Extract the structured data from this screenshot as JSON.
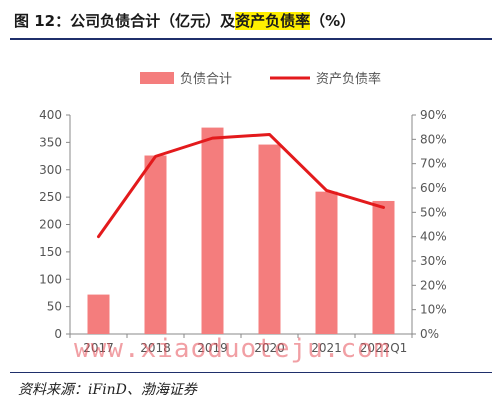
{
  "header": {
    "title_main": "图 12：公司负债合计（亿元）及",
    "title_highlight": "资产负债率",
    "title_tail": "（%）"
  },
  "chart_data": {
    "type": "bar",
    "categories": [
      "2017",
      "2018",
      "2019",
      "2020",
      "2021",
      "2022Q1"
    ],
    "series": [
      {
        "name": "负债合计",
        "type": "bar",
        "axis": "left",
        "values": [
          72,
          326,
          377,
          346,
          260,
          243
        ]
      },
      {
        "name": "资产负债率",
        "type": "line",
        "axis": "right",
        "values": [
          40,
          73,
          80.5,
          82,
          59,
          52
        ]
      }
    ],
    "ylim_left": [
      0,
      400
    ],
    "yticks_left": [
      "0",
      "50",
      "100",
      "150",
      "200",
      "250",
      "300",
      "350",
      "400"
    ],
    "ylim_right": [
      0,
      90
    ],
    "yticks_right": [
      "0%",
      "10%",
      "20%",
      "30%",
      "40%",
      "50%",
      "60%",
      "70%",
      "80%",
      "90%"
    ],
    "legend_position": "top",
    "grid": false,
    "colors": {
      "bar": "#f47d7d",
      "line": "#e31a1c",
      "axis": "#888888",
      "text": "#555555"
    }
  },
  "source": {
    "text": "资料来源：iFinD、渤海证券"
  },
  "watermark": {
    "text": "www.xiaoduoteju.com"
  }
}
